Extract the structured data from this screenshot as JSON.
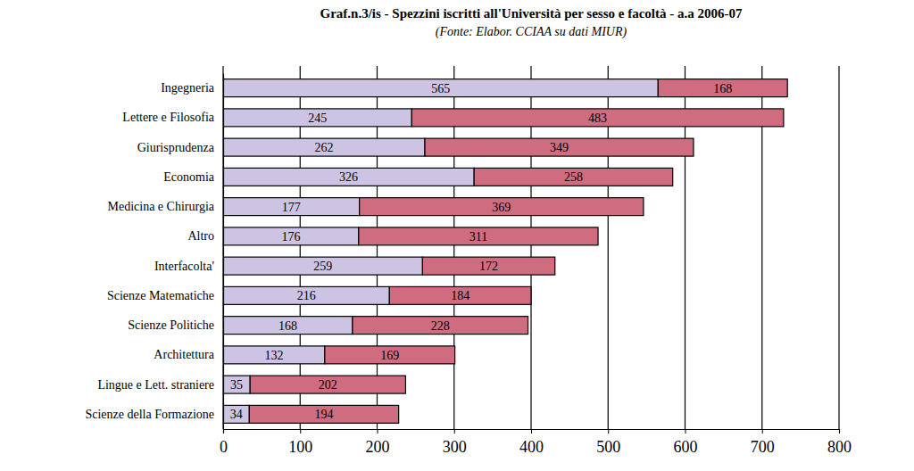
{
  "chart_data": {
    "type": "bar",
    "orientation": "horizontal",
    "stacked": true,
    "data_labels": true,
    "grid": true,
    "title": "Graf.n.3/is - Spezzini iscritti all'Università per sesso e facoltà - a.a 2006-07",
    "subtitle": "(Fonte: Elabor. CCIAA su dati MIUR)",
    "categories": [
      "Ingegneria",
      "Lettere e Filosofia",
      "Giurisprudenza",
      "Economia",
      "Medicina e Chirurgia",
      "Altro",
      "Interfacolta'",
      "Scienze Matematiche",
      "Scienze Politiche",
      "Architettura",
      "Lingue e Lett. straniere",
      "Scienze della Formazione"
    ],
    "series": [
      {
        "color": "#cdc3e3",
        "values": [
          565,
          245,
          262,
          326,
          177,
          176,
          259,
          216,
          168,
          132,
          35,
          34
        ]
      },
      {
        "color": "#d06c7f",
        "values": [
          168,
          483,
          349,
          258,
          369,
          311,
          172,
          184,
          228,
          169,
          202,
          194
        ]
      }
    ],
    "xlim": [
      0,
      800
    ],
    "xticks": [
      0,
      100,
      200,
      300,
      400,
      500,
      600,
      700,
      800
    ]
  }
}
